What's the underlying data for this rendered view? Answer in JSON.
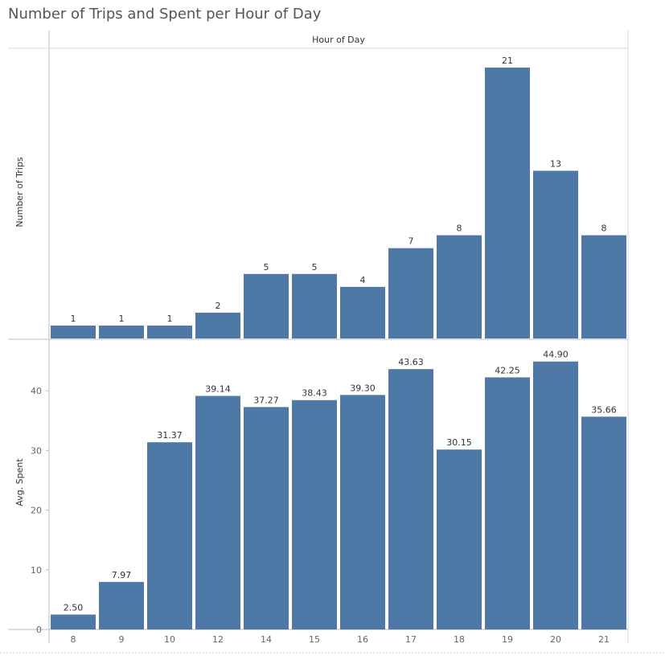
{
  "title": "Number of Trips and Spent per Hour of Day",
  "chart_data": {
    "type": "bar",
    "column_header": "Hour of Day",
    "categories": [
      "8",
      "9",
      "10",
      "12",
      "14",
      "15",
      "16",
      "17",
      "18",
      "19",
      "20",
      "21"
    ],
    "bar_color": "#4e79a7",
    "panels": [
      {
        "ylabel": "Number of Trips",
        "values": [
          1,
          1,
          1,
          2,
          5,
          5,
          4,
          7,
          8,
          21,
          13,
          8
        ],
        "labels": [
          "1",
          "1",
          "1",
          "2",
          "5",
          "5",
          "4",
          "7",
          "8",
          "21",
          "13",
          "8"
        ],
        "ylim": [
          0,
          22.5
        ],
        "yticks": []
      },
      {
        "ylabel": "Avg. Spent",
        "values": [
          2.5,
          7.97,
          31.37,
          39.14,
          37.27,
          38.43,
          39.3,
          43.63,
          30.15,
          42.25,
          44.9,
          35.66
        ],
        "labels": [
          "2.50",
          "7.97",
          "31.37",
          "39.14",
          "37.27",
          "38.43",
          "39.30",
          "43.63",
          "30.15",
          "42.25",
          "44.90",
          "35.66"
        ],
        "ylim": [
          0,
          48.5
        ],
        "yticks": [
          "0",
          "10",
          "20",
          "30",
          "40"
        ]
      }
    ]
  }
}
